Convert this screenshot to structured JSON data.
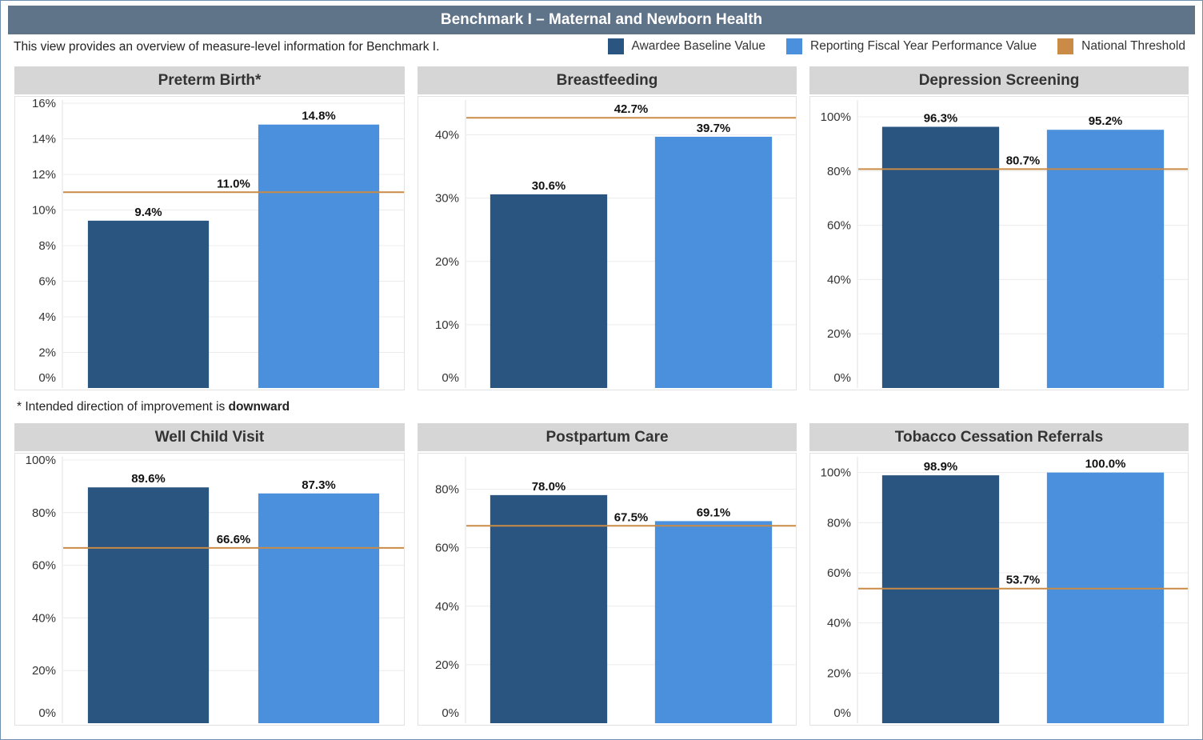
{
  "header": {
    "title": "Benchmark I – Maternal and Newborn Health"
  },
  "intro": "This view provides an overview of measure-level information for Benchmark I.",
  "legend": [
    {
      "name": "legend-awardee-baseline",
      "label": "Awardee Baseline Value",
      "color": "#2a5580"
    },
    {
      "name": "legend-reporting-fy",
      "label": "Reporting Fiscal Year Performance Value",
      "color": "#4a90dc"
    },
    {
      "name": "legend-national-threshold",
      "label": "National Threshold",
      "color": "#c98b45"
    }
  ],
  "note": {
    "prefix": "* Intended direction of improvement is ",
    "bold": "downward"
  },
  "colors": {
    "baseline": "#2a5580",
    "reporting": "#4a90dc",
    "threshold": "#c98b45"
  },
  "chart_data": [
    {
      "type": "bar",
      "title": "Preterm Birth*",
      "categories": [
        "Awardee Baseline Value",
        "Reporting Fiscal Year Performance Value"
      ],
      "values": [
        9.4,
        14.8
      ],
      "value_labels": [
        "9.4%",
        "14.8%"
      ],
      "threshold": 11.0,
      "threshold_label": "11.0%",
      "ylim": [
        0,
        16
      ],
      "yticks": [
        0,
        2,
        4,
        6,
        8,
        10,
        12,
        14,
        16
      ],
      "ytick_labels": [
        "0%",
        "2%",
        "4%",
        "6%",
        "8%",
        "10%",
        "12%",
        "14%",
        "16%"
      ]
    },
    {
      "type": "bar",
      "title": "Breastfeeding",
      "categories": [
        "Awardee Baseline Value",
        "Reporting Fiscal Year Performance Value"
      ],
      "values": [
        30.6,
        39.7
      ],
      "value_labels": [
        "30.6%",
        "39.7%"
      ],
      "threshold": 42.7,
      "threshold_label": "42.7%",
      "ylim": [
        0,
        45
      ],
      "yticks": [
        0,
        10,
        20,
        30,
        40
      ],
      "ytick_labels": [
        "0%",
        "10%",
        "20%",
        "30%",
        "40%"
      ]
    },
    {
      "type": "bar",
      "title": "Depression Screening",
      "categories": [
        "Awardee Baseline Value",
        "Reporting Fiscal Year Performance Value"
      ],
      "values": [
        96.3,
        95.2
      ],
      "value_labels": [
        "96.3%",
        "95.2%"
      ],
      "threshold": 80.7,
      "threshold_label": "80.7%",
      "ylim": [
        0,
        105
      ],
      "yticks": [
        0,
        20,
        40,
        60,
        80,
        100
      ],
      "ytick_labels": [
        "0%",
        "20%",
        "40%",
        "60%",
        "80%",
        "100%"
      ]
    },
    {
      "type": "bar",
      "title": "Well Child Visit",
      "categories": [
        "Awardee Baseline Value",
        "Reporting Fiscal Year Performance Value"
      ],
      "values": [
        89.6,
        87.3
      ],
      "value_labels": [
        "89.6%",
        "87.3%"
      ],
      "threshold": 66.6,
      "threshold_label": "66.6%",
      "ylim": [
        0,
        100
      ],
      "yticks": [
        0,
        20,
        40,
        60,
        80,
        100
      ],
      "ytick_labels": [
        "0%",
        "20%",
        "40%",
        "60%",
        "80%",
        "100%"
      ]
    },
    {
      "type": "bar",
      "title": "Postpartum Care",
      "categories": [
        "Awardee Baseline Value",
        "Reporting Fiscal Year Performance Value"
      ],
      "values": [
        78.0,
        69.1
      ],
      "value_labels": [
        "78.0%",
        "69.1%"
      ],
      "threshold": 67.5,
      "threshold_label": "67.5%",
      "ylim": [
        0,
        90
      ],
      "yticks": [
        0,
        20,
        40,
        60,
        80
      ],
      "ytick_labels": [
        "0%",
        "20%",
        "40%",
        "60%",
        "80%"
      ]
    },
    {
      "type": "bar",
      "title": "Tobacco Cessation Referrals",
      "categories": [
        "Awardee Baseline Value",
        "Reporting Fiscal Year Performance Value"
      ],
      "values": [
        98.9,
        100.0
      ],
      "value_labels": [
        "98.9%",
        "100.0%"
      ],
      "threshold": 53.7,
      "threshold_label": "53.7%",
      "ylim": [
        0,
        105
      ],
      "yticks": [
        0,
        20,
        40,
        60,
        80,
        100
      ],
      "ytick_labels": [
        "0%",
        "20%",
        "40%",
        "60%",
        "80%",
        "100%"
      ]
    }
  ]
}
